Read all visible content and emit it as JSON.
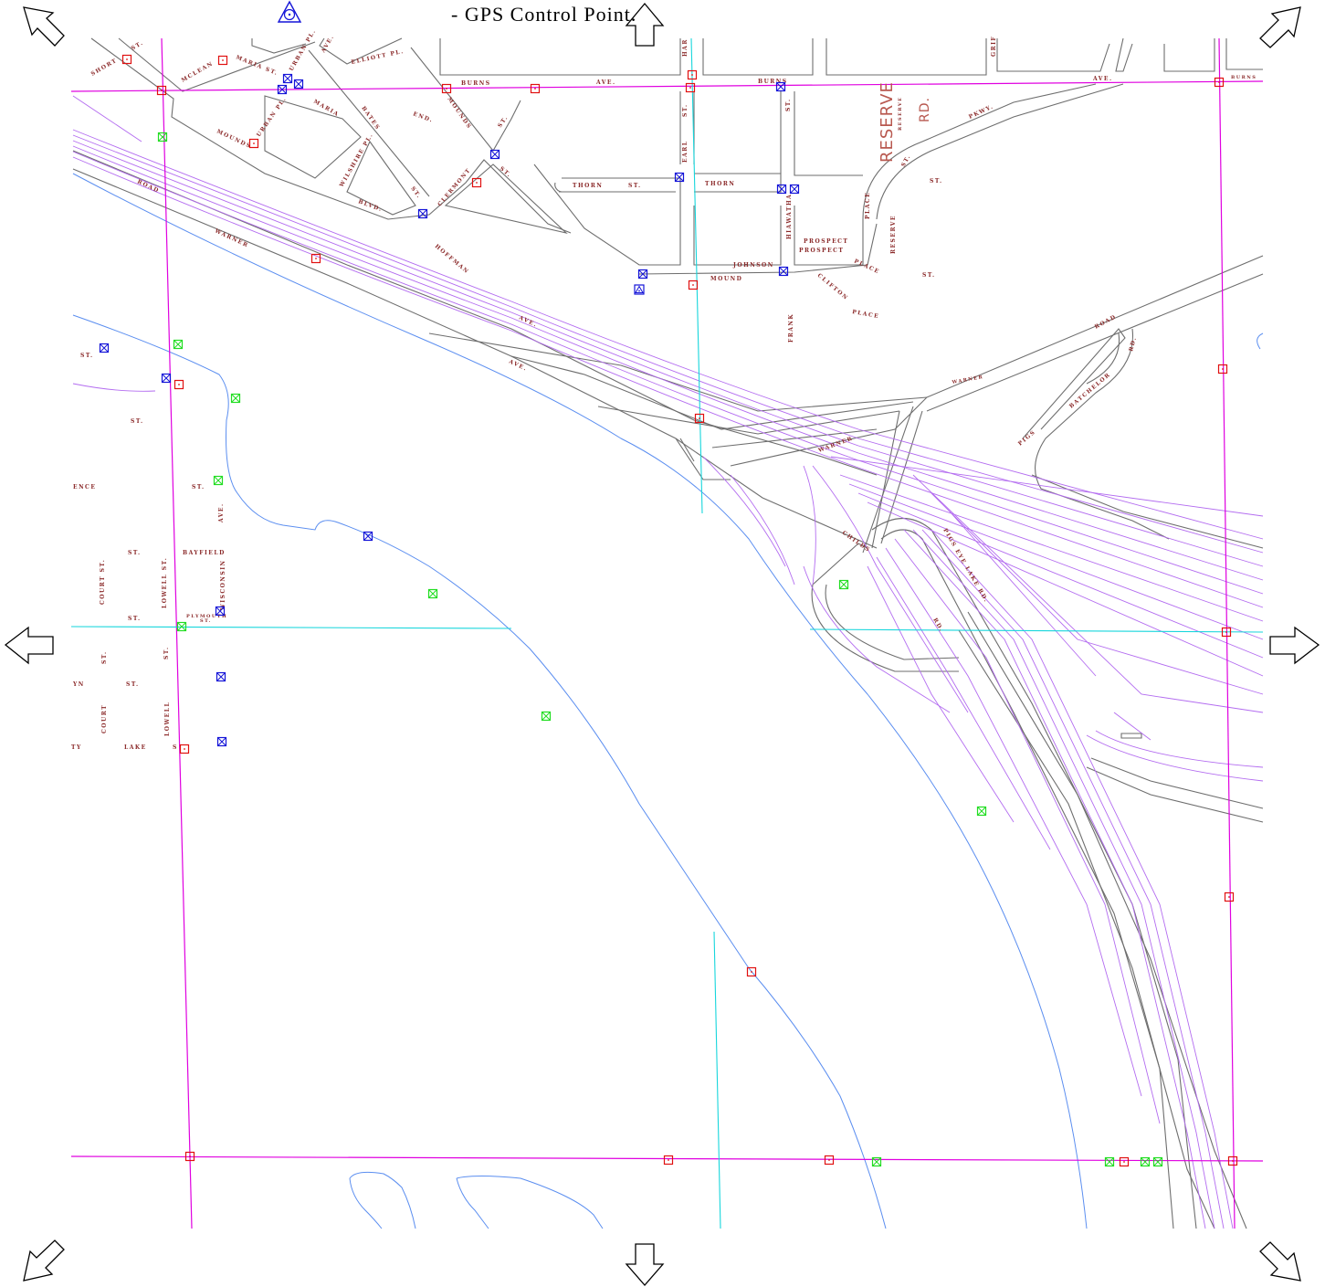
{
  "legend": {
    "text": "- GPS Control Point.",
    "icon": "gps-control-point-icon"
  },
  "colors": {
    "section_line": "#e000e0",
    "quarter_line": "#17d6dc",
    "road": "#6e6e6e",
    "railroad": "#b36cf0",
    "river": "#5b8ef0",
    "label": "#8b2a2a",
    "red_marker": "#e01010",
    "blue_marker": "#1414d8",
    "green_marker": "#22dd22"
  },
  "navigation": {
    "pan_up": "arrow-up-icon",
    "pan_down": "arrow-down-icon",
    "pan_left": "arrow-left-icon",
    "pan_right": "arrow-right-icon",
    "pan_up_left": "arrow-up-left-icon",
    "pan_up_right": "arrow-up-right-icon",
    "pan_down_left": "arrow-down-left-icon",
    "pan_down_right": "arrow-down-right-icon"
  },
  "map": {
    "labels": {
      "burns": "BURNS",
      "ave": "AVE.",
      "ave2": "AVE.",
      "burns2": "BURNS",
      "burns3": "BURNS",
      "st1": "ST.",
      "elliott": "ELLIOTT PL.",
      "maria_st": "MARIA ST.",
      "mclean": "MCLEAN",
      "maria": "MARIA",
      "short": "SHORT",
      "urban_pl": "URBAN PL.",
      "urban_pl2": "URBAN PL.",
      "bates": "BATES",
      "mounds": "MOUNDS",
      "mounds2": "MOUNDS",
      "wilshire": "WILSHIRE PL.",
      "blvd": "BLVD.",
      "clermont": "CLERMONT",
      "ave3": "AVE.",
      "st2": "ST.",
      "st3": "ST.",
      "end": "END.",
      "thorn": "THORN",
      "thorn_st": "ST.",
      "thorn2": "THORN",
      "earl": "EARL",
      "earl_st": "ST.",
      "har": "HAR",
      "st_burns": "ST.",
      "hiawatha": "HIAWATHA",
      "place": "PLACE",
      "prospect": "PROSPECT",
      "prospect2": "PROSPECT",
      "place2": "PLACE",
      "johnson": "JOHNSON",
      "mound": "MOUND",
      "clifton": "CLIFTON",
      "place3": "PLACE",
      "frank": "FRANK",
      "reserve_big": "RESERVE",
      "rd_big": "RD.",
      "reserve_small": "RESERVE",
      "reserve2": "RESERVE",
      "st_res": "ST.",
      "st_res2": "ST.",
      "st_res3": "ST.",
      "pkwy": "PKWY.",
      "grif": "GRIF",
      "road_warner": "ROAD",
      "warner": "WARNER",
      "hoffman": "HOFFMAN",
      "ave_hoff": "AVE.",
      "ave_hoff2": "AVE.",
      "road_right": "ROAD",
      "rd_right": "RD.",
      "warner2": "WARNER",
      "warner3": "WARNER",
      "childs": "CHILDS",
      "pigs": "PIGS",
      "batchelor": "BATCHELOR",
      "pigs_eye": "PIGS EYE LAKE RD.",
      "rd_low": "RD.",
      "st_w1": "ST.",
      "st_w2": "ST.",
      "ence": "ENCE",
      "st_w3": "ST.",
      "ave_w": "AVE.",
      "bayfield": "BAYFIELD",
      "st_bay": "ST.",
      "court_st": "COURT ST.",
      "lowell_st": "LOWELL ST.",
      "wisconsin": "WISCONSIN",
      "plymouth": "PLYMOUTH",
      "plymouth_st": "ST.",
      "st_w4": "ST.",
      "st_w5": "ST.",
      "st_w6": "ST.",
      "yn": "YN",
      "st_w7": "ST.",
      "court": "COURT",
      "lowell": "LOWELL",
      "lake": "LAKE",
      "ty": "TY",
      "s_w": "S"
    }
  }
}
